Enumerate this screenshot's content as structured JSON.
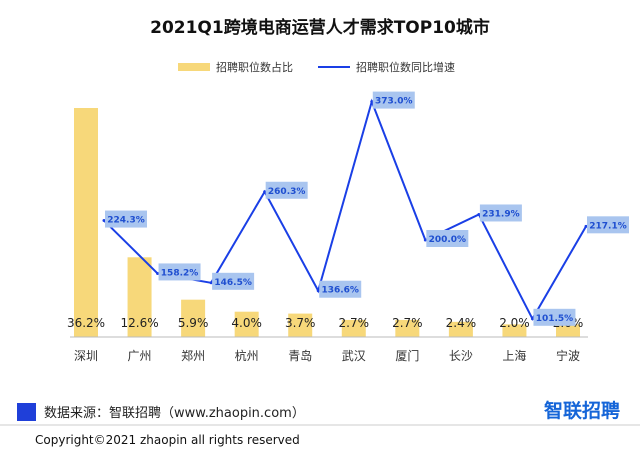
{
  "chart_data": {
    "type": "bar+line",
    "title": "2021Q1跨境电商运营人才需求TOP10城市",
    "categories": [
      "深圳",
      "广州",
      "郑州",
      "杭州",
      "青岛",
      "武汉",
      "厦门",
      "长沙",
      "上海",
      "宁波"
    ],
    "series": [
      {
        "name": "招聘职位数占比",
        "type": "bar",
        "values": [
          36.2,
          12.6,
          5.9,
          4.0,
          3.7,
          2.7,
          2.7,
          2.4,
          2.0,
          2.0
        ],
        "labels": [
          "36.2%",
          "12.6%",
          "5.9%",
          "4.0%",
          "3.7%",
          "2.7%",
          "2.7%",
          "2.4%",
          "2.0%",
          "2.0%"
        ],
        "color": "#f7d87a"
      },
      {
        "name": "招聘职位数同比增速",
        "type": "line",
        "values": [
          224.3,
          158.2,
          146.5,
          260.3,
          136.6,
          373.0,
          200.0,
          231.9,
          101.5,
          217.1
        ],
        "labels": [
          "224.3%",
          "158.2%",
          "146.5%",
          "260.3%",
          "136.6%",
          "373.0%",
          "200.0%",
          "231.9%",
          "101.5%",
          "217.1%"
        ],
        "color": "#1a3fe6"
      }
    ],
    "legend_position": "top",
    "grid": false
  },
  "footer": {
    "source": "数据来源：智联招聘（www.zhaopin.com）",
    "brand": "智联招聘",
    "copyright": "Copyright©2021 zhaopin all rights reserved"
  }
}
